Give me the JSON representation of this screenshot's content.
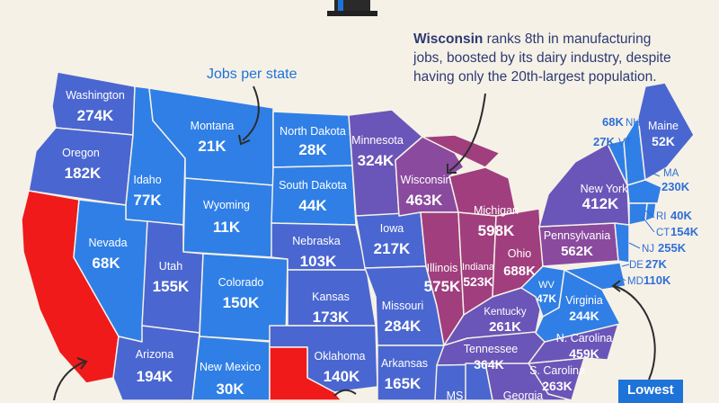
{
  "annotations": {
    "jobs_label": "Jobs per state",
    "wisconsin_name": "Wisconsin",
    "wisconsin_note": " ranks 8th in manufacturing jobs, boosted by its dairy industry, despite having only the 20th-largest population.",
    "lowest_label": "Lowest"
  },
  "colors": {
    "low": "#2f7fe6",
    "mid": "#4a66d0",
    "upper": "#6a55b8",
    "high": "#8a4a9e",
    "top": "#a03e7e",
    "highlight": "#f01a1a",
    "water": "#f6f1e7"
  },
  "states": {
    "WA": {
      "name": "Washington",
      "value": "274K"
    },
    "OR": {
      "name": "Oregon",
      "value": "182K"
    },
    "CA": {
      "name": "",
      "value": ""
    },
    "ID": {
      "name": "Idaho",
      "value": "77K"
    },
    "NV": {
      "name": "Nevada",
      "value": "68K"
    },
    "MT": {
      "name": "Montana",
      "value": "21K"
    },
    "WY": {
      "name": "Wyoming",
      "value": "11K"
    },
    "UT": {
      "name": "Utah",
      "value": "155K"
    },
    "AZ": {
      "name": "Arizona",
      "value": "194K"
    },
    "CO": {
      "name": "Colorado",
      "value": "150K"
    },
    "NM": {
      "name": "New Mexico",
      "value": "30K"
    },
    "ND": {
      "name": "North Dakota",
      "value": "28K"
    },
    "SD": {
      "name": "South Dakota",
      "value": "44K"
    },
    "NE": {
      "name": "Nebraska",
      "value": "103K"
    },
    "KS": {
      "name": "Kansas",
      "value": "173K"
    },
    "OK": {
      "name": "Oklahoma",
      "value": "140K"
    },
    "MN": {
      "name": "Minnesota",
      "value": "324K"
    },
    "IA": {
      "name": "Iowa",
      "value": "217K"
    },
    "MO": {
      "name": "Missouri",
      "value": "284K"
    },
    "AR": {
      "name": "Arkansas",
      "value": "165K"
    },
    "WI": {
      "name": "Wisconsin",
      "value": "463K"
    },
    "MI": {
      "name": "Michigan",
      "value": "598K"
    },
    "IL": {
      "name": "Illinois",
      "value": "575K"
    },
    "IN": {
      "name": "Indiana",
      "value": "523K"
    },
    "OH": {
      "name": "Ohio",
      "value": "688K"
    },
    "KY": {
      "name": "Kentucky",
      "value": "261K"
    },
    "TN": {
      "name": "Tennessee",
      "value": "364K"
    },
    "WV": {
      "name": "WV",
      "value": "47K"
    },
    "VA": {
      "name": "Virginia",
      "value": "244K"
    },
    "NC": {
      "name": "N. Carolina",
      "value": "459K"
    },
    "SC": {
      "name": "S. Carolina",
      "value": "263K"
    },
    "PA": {
      "name": "Pennsylvania",
      "value": "562K"
    },
    "NY": {
      "name": "New York",
      "value": "412K"
    },
    "ME": {
      "name": "Maine",
      "value": "52K"
    },
    "GA": {
      "name": "Georgia",
      "value": ""
    },
    "MS": {
      "name": "MS",
      "value": ""
    },
    "TX": {
      "name": "",
      "value": ""
    }
  },
  "northeast": {
    "NH": {
      "name": "NH",
      "value": "68K"
    },
    "VT": {
      "name": "VT",
      "value": "27K"
    },
    "MA": {
      "name": "MA",
      "value": "230K"
    },
    "RI": {
      "name": "RI",
      "value": "40K"
    },
    "CT": {
      "name": "CT",
      "value": "154K"
    },
    "NJ": {
      "name": "NJ",
      "value": "255K"
    },
    "DE": {
      "name": "DE",
      "value": "27K"
    },
    "MD": {
      "name": "MD",
      "value": "110K"
    }
  }
}
